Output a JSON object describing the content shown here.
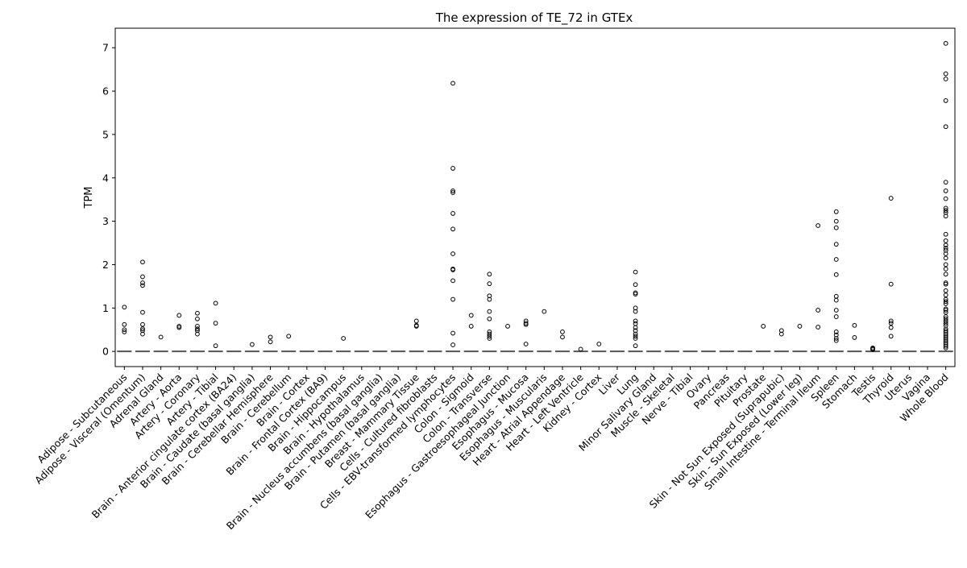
{
  "chart_data": {
    "type": "box",
    "title": "The expression of TE_72 in GTEx",
    "xlabel": "",
    "ylabel": "TPM",
    "ylim": [
      -0.35,
      7.45
    ],
    "yticks": [
      0,
      1,
      2,
      3,
      4,
      5,
      6,
      7
    ],
    "grid": false,
    "categories": [
      "Adipose - Subcutaneous",
      "Adipose - Visceral (Omentum)",
      "Adrenal Gland",
      "Artery - Aorta",
      "Artery - Coronary",
      "Artery - Tibial",
      "Brain - Anterior cingulate cortex (BA24)",
      "Brain - Caudate (basal ganglia)",
      "Brain - Cerebellar Hemisphere",
      "Brain - Cerebellum",
      "Brain - Cortex",
      "Brain - Frontal Cortex (BA9)",
      "Brain - Hippocampus",
      "Brain - Hypothalamus",
      "Brain - Nucleus accumbens (basal ganglia)",
      "Brain - Putamen (basal ganglia)",
      "Breast - Mammary Tissue",
      "Cells - Cultured fibroblasts",
      "Cells - EBV-transformed lymphocytes",
      "Colon - Sigmoid",
      "Colon - Transverse",
      "Esophagus - Gastroesophageal Junction",
      "Esophagus - Mucosa",
      "Esophagus - Muscularis",
      "Heart - Atrial Appendage",
      "Heart - Left Ventricle",
      "Kidney - Cortex",
      "Liver",
      "Lung",
      "Minor Salivary Gland",
      "Muscle - Skeletal",
      "Nerve - Tibial",
      "Ovary",
      "Pancreas",
      "Pituitary",
      "Prostate",
      "Skin - Not Sun Exposed (Suprapubic)",
      "Skin - Sun Exposed (Lower leg)",
      "Small Intestine - Terminal Ileum",
      "Spleen",
      "Stomach",
      "Testis",
      "Thyroid",
      "Uterus",
      "Vagina",
      "Whole Blood"
    ],
    "median": [
      0,
      0,
      0,
      0,
      0,
      0,
      0,
      0,
      0,
      0,
      0,
      0,
      0,
      0,
      0,
      0,
      0,
      0,
      0,
      0,
      0,
      0,
      0,
      0,
      0,
      0,
      0,
      0,
      0,
      0,
      0,
      0,
      0,
      0,
      0,
      0,
      0,
      0,
      0,
      0,
      0,
      0,
      0,
      0,
      0,
      0
    ],
    "outliers": [
      [
        1.02,
        0.62,
        0.5,
        0.45
      ],
      [
        2.06,
        1.72,
        1.58,
        1.52,
        0.9,
        0.62,
        0.52,
        0.48,
        0.4
      ],
      [
        0.33
      ],
      [
        0.83,
        0.58,
        0.55
      ],
      [
        0.88,
        0.75,
        0.58,
        0.52,
        0.48,
        0.4
      ],
      [
        1.11,
        0.65,
        0.13
      ],
      [],
      [
        0.16
      ],
      [
        0.33,
        0.22
      ],
      [
        0.35
      ],
      [],
      [],
      [
        0.3
      ],
      [],
      [],
      [],
      [
        0.7,
        0.6,
        0.58
      ],
      [],
      [
        6.18,
        4.22,
        3.7,
        3.66,
        3.18,
        2.82,
        2.25,
        1.9,
        1.88,
        1.63,
        1.2,
        0.42,
        0.15
      ],
      [
        0.83,
        0.58
      ],
      [
        1.78,
        1.56,
        1.28,
        1.2,
        0.92,
        0.75,
        0.45,
        0.4,
        0.35,
        0.3
      ],
      [
        0.58
      ],
      [
        0.7,
        0.65,
        0.62,
        0.17
      ],
      [
        0.92
      ],
      [
        0.45,
        0.33
      ],
      [
        0.05
      ],
      [
        0.17
      ],
      [],
      [
        1.83,
        1.54,
        1.35,
        1.32,
        1.0,
        0.92,
        0.7,
        0.64,
        0.55,
        0.48,
        0.4,
        0.35,
        0.3,
        0.13
      ],
      [],
      [],
      [],
      [],
      [],
      [],
      [
        0.58
      ],
      [
        0.48,
        0.4
      ],
      [
        0.58
      ],
      [
        2.9,
        0.95,
        0.56
      ],
      [
        3.22,
        3.0,
        2.85,
        2.47,
        2.12,
        1.77,
        1.27,
        1.18,
        0.95,
        0.8,
        0.45,
        0.38,
        0.3,
        0.25
      ],
      [
        0.6,
        0.32
      ],
      [
        0.08,
        0.06,
        0.04
      ],
      [
        3.53,
        1.55,
        0.7,
        0.65,
        0.55,
        0.35
      ],
      [],
      [],
      [
        7.1,
        6.4,
        6.28,
        5.78,
        5.18,
        3.9,
        3.7,
        3.52,
        3.3,
        3.25,
        3.2,
        3.12,
        2.7,
        2.55,
        2.45,
        2.38,
        2.33,
        2.25,
        2.15,
        2.0,
        1.9,
        1.78,
        1.58,
        1.55,
        1.4,
        1.3,
        1.2,
        1.15,
        1.1,
        0.98,
        0.95,
        0.9,
        0.8,
        0.75,
        0.7,
        0.65,
        0.6,
        0.52,
        0.48,
        0.44,
        0.4,
        0.36,
        0.32,
        0.28,
        0.24,
        0.2,
        0.16,
        0.12,
        0.08
      ]
    ]
  }
}
